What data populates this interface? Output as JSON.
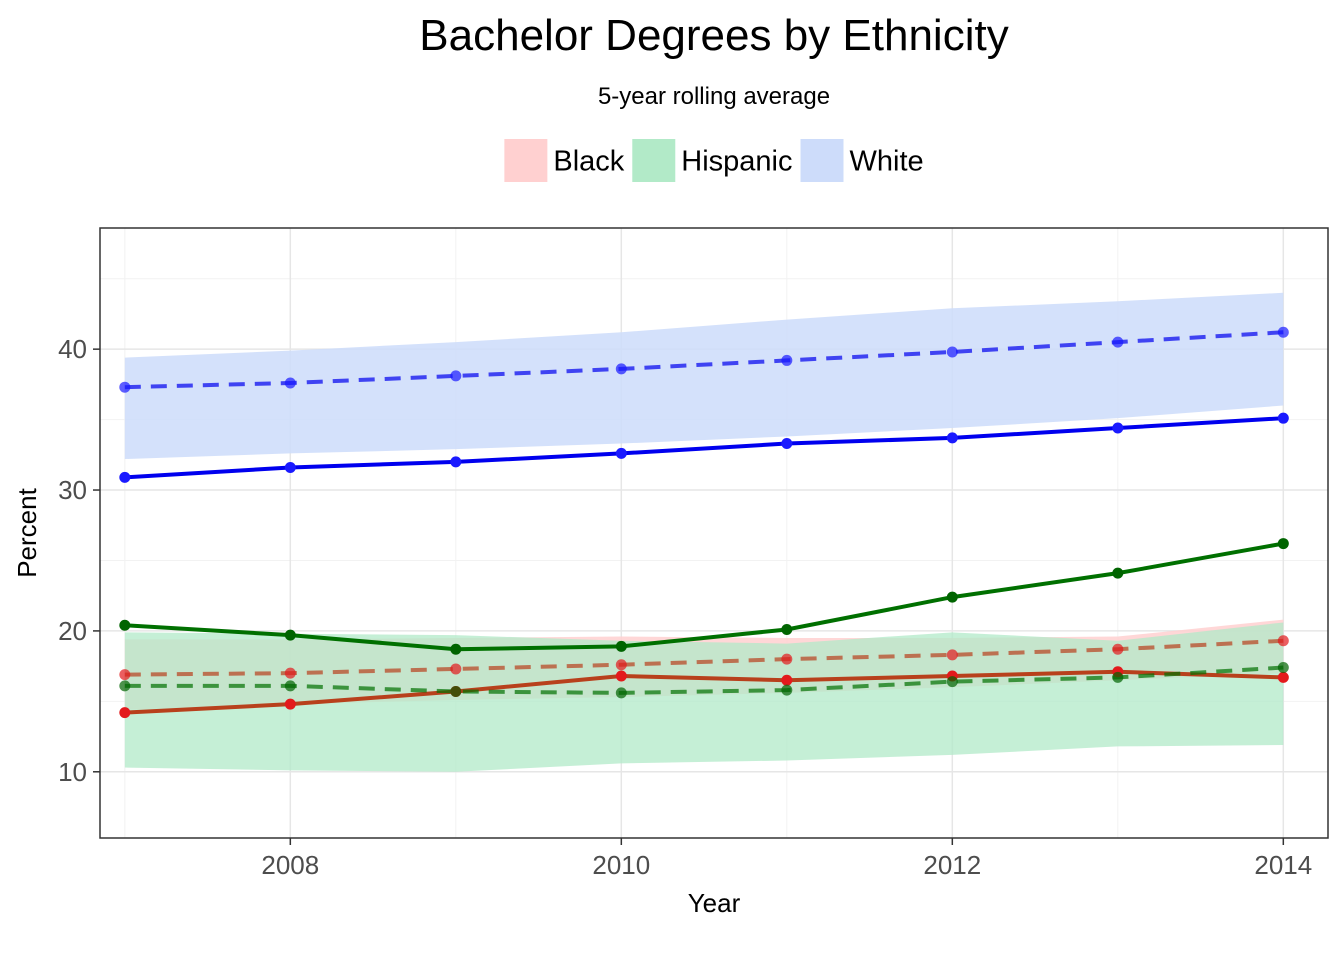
{
  "chart_data": {
    "type": "line",
    "title": "Bachelor Degrees by Ethnicity",
    "subtitle": "5-year rolling average",
    "xlabel": "Year",
    "ylabel": "Percent",
    "x": [
      2007,
      2008,
      2009,
      2010,
      2011,
      2012,
      2013,
      2014
    ],
    "xlim": [
      2006.85,
      2014.27
    ],
    "ylim": [
      5.3,
      48.6
    ],
    "xticks": [
      2008,
      2010,
      2012,
      2014
    ],
    "yticks": [
      10,
      20,
      30,
      40
    ],
    "grid": true,
    "legend_position": "top",
    "legend": [
      {
        "label": "Black",
        "color": "#ffd0d0"
      },
      {
        "label": "Hispanic",
        "color": "#b2eac8"
      },
      {
        "label": "White",
        "color": "#cddcfa"
      }
    ],
    "series": [
      {
        "name": "Black",
        "color": "#b8401c",
        "point_color": "#e31a1c",
        "solid": [
          14.2,
          14.8,
          15.7,
          16.8,
          16.5,
          16.8,
          17.1,
          16.7
        ],
        "dashed": [
          16.9,
          17.0,
          17.3,
          17.6,
          18.0,
          18.3,
          18.7,
          19.3
        ],
        "band_low": [
          14.4,
          14.8,
          15.1,
          15.3,
          15.6,
          16.0,
          16.5,
          17.0
        ],
        "band_high": [
          19.4,
          19.4,
          19.5,
          19.6,
          19.5,
          19.5,
          19.6,
          20.8
        ]
      },
      {
        "name": "Hispanic",
        "color": "#007000",
        "point_color": "#006400",
        "solid": [
          20.4,
          19.7,
          18.7,
          18.9,
          20.1,
          22.4,
          24.1,
          26.2
        ],
        "dashed": [
          16.1,
          16.1,
          15.7,
          15.6,
          15.8,
          16.4,
          16.7,
          17.4
        ],
        "band_low": [
          10.3,
          10.1,
          10.0,
          10.6,
          10.8,
          11.2,
          11.8,
          11.9
        ],
        "band_high": [
          19.9,
          19.8,
          19.7,
          19.3,
          19.1,
          19.9,
          19.3,
          20.6
        ]
      },
      {
        "name": "White",
        "color": "#0000ee",
        "point_color": "#1a1aff",
        "solid": [
          30.9,
          31.6,
          32.0,
          32.6,
          33.3,
          33.7,
          34.4,
          35.1
        ],
        "dashed": [
          37.3,
          37.6,
          38.1,
          38.6,
          39.2,
          39.8,
          40.5,
          41.2
        ],
        "band_low": [
          32.2,
          32.6,
          32.9,
          33.3,
          33.8,
          34.4,
          35.1,
          36.0
        ],
        "band_high": [
          39.4,
          39.9,
          40.5,
          41.2,
          42.1,
          42.9,
          43.4,
          44.0
        ]
      }
    ]
  }
}
